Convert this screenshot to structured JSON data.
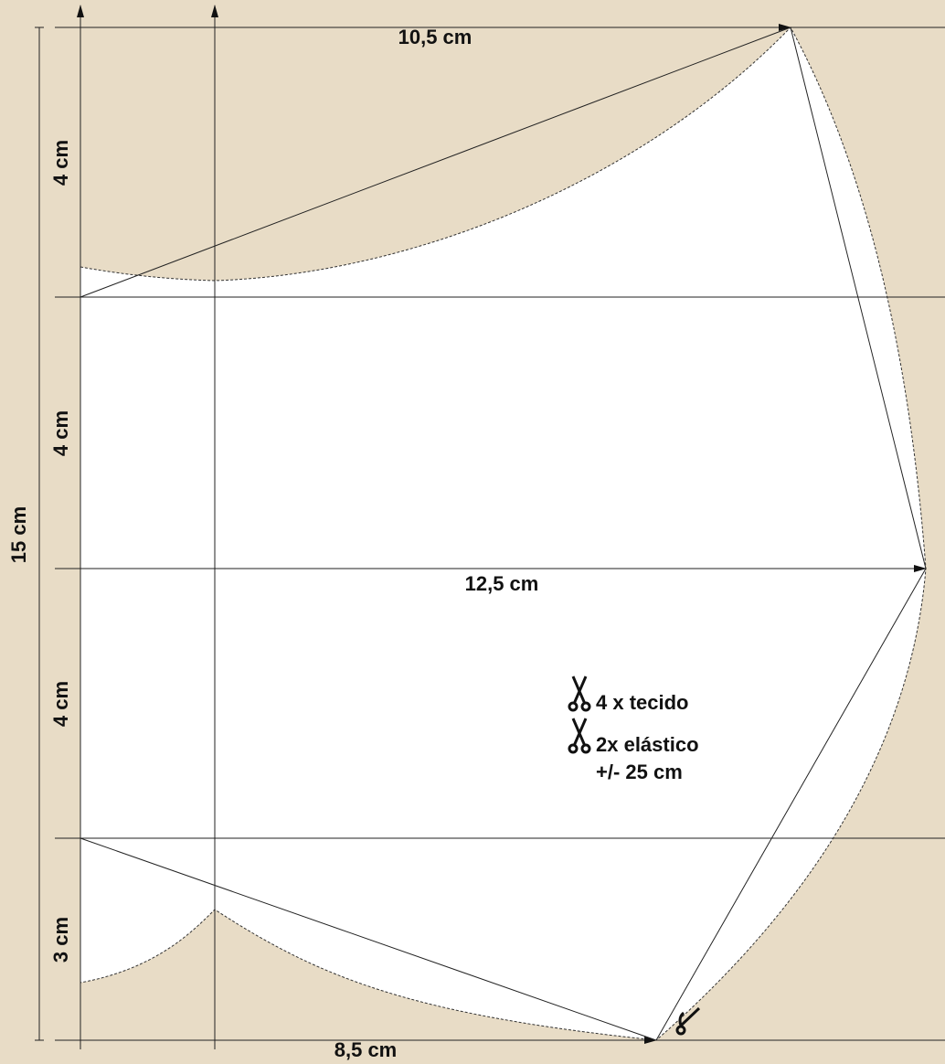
{
  "dimensions": {
    "top_width": "10,5 cm",
    "middle_width": "12,5 cm",
    "bottom_width": "8,5 cm",
    "total_height": "15 cm",
    "segments": [
      "4 cm",
      "4 cm",
      "4 cm",
      "3 cm"
    ]
  },
  "instructions": [
    "4 x tecido",
    "2x elástico",
    "+/- 25 cm"
  ]
}
